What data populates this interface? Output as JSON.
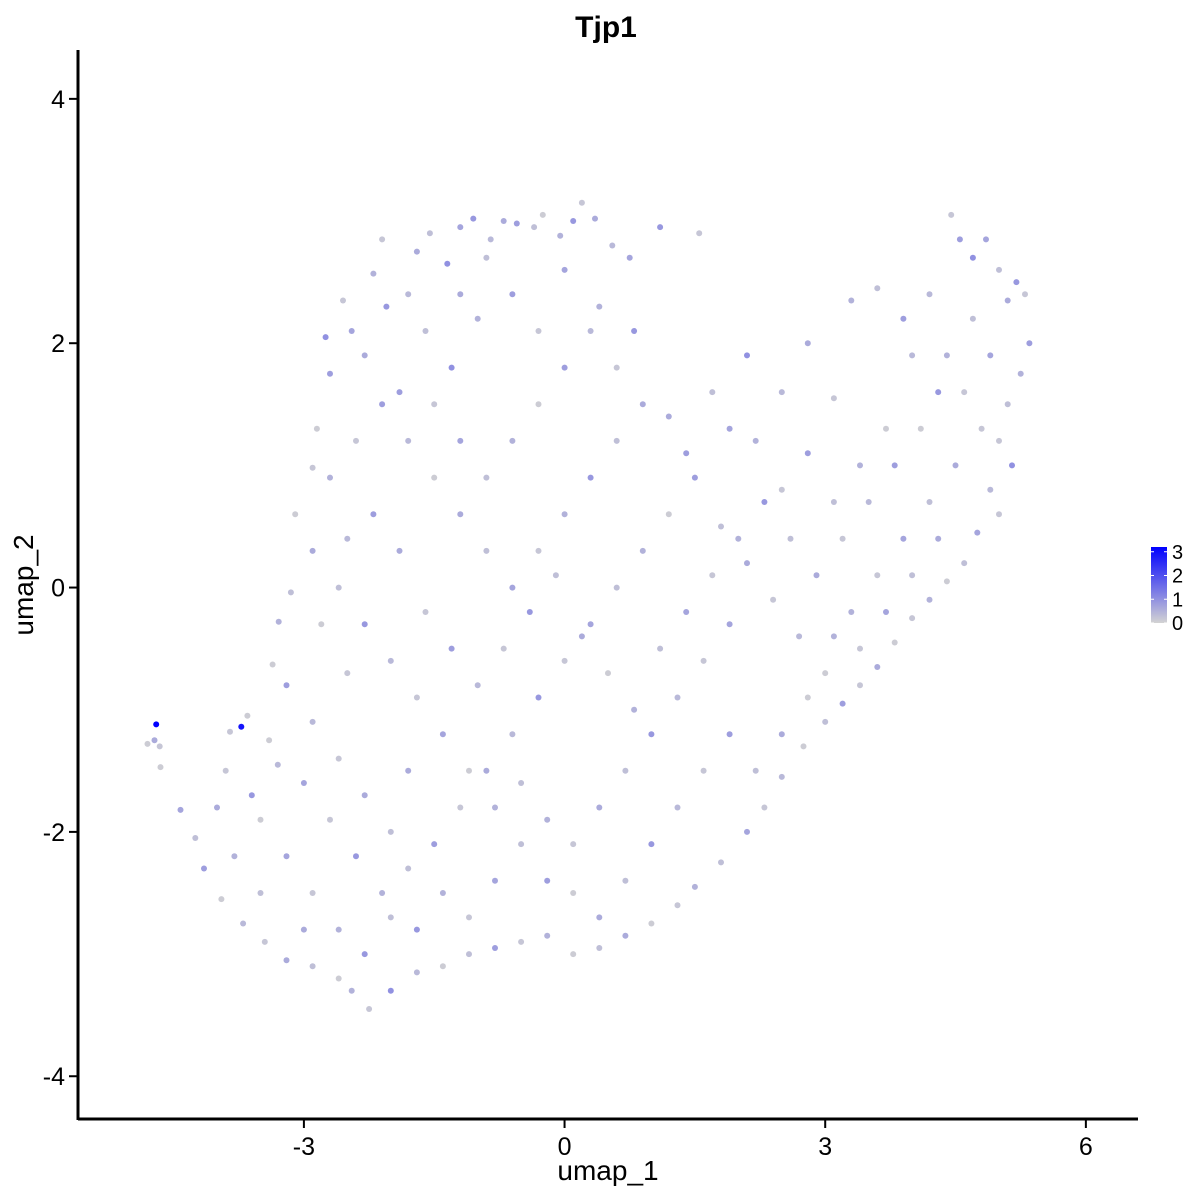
{
  "chart_data": {
    "type": "scatter",
    "title": "Tjp1",
    "xlabel": "umap_1",
    "ylabel": "umap_2",
    "xlim": [
      -5.6,
      6.6
    ],
    "ylim": [
      -4.35,
      4.4
    ],
    "x_ticks": [
      -3,
      0,
      3,
      6
    ],
    "x_tick_labels": [
      "-3",
      "0",
      "3",
      "6"
    ],
    "y_ticks": [
      -4,
      -2,
      0,
      2,
      4
    ],
    "y_tick_labels": [
      "-4",
      "-2",
      "0",
      "2",
      "4"
    ],
    "grid": false,
    "color_scale": {
      "low_color": "#d3d3d3",
      "high_color": "#0000ff",
      "min": 0,
      "max": 3.2,
      "ticks": [
        0,
        1,
        2,
        3
      ],
      "tick_labels": [
        "0",
        "1",
        "2",
        "3"
      ]
    },
    "legend_position": "right",
    "points": [
      [
        -4.7,
        -1.12,
        3.2
      ],
      [
        -4.72,
        -1.25,
        0.6
      ],
      [
        -4.8,
        -1.28,
        0.1
      ],
      [
        -4.66,
        -1.3,
        0.2
      ],
      [
        -4.65,
        -1.47,
        0.1
      ],
      [
        -3.72,
        -1.14,
        2.9
      ],
      [
        -4.42,
        -1.82,
        0.7
      ],
      [
        -3.85,
        -1.18,
        0.2
      ],
      [
        -3.65,
        -1.05,
        0.1
      ],
      [
        -3.4,
        -1.25,
        0.1
      ],
      [
        -3.29,
        -0.28,
        0.5
      ],
      [
        -3.36,
        -0.63,
        0.1
      ],
      [
        -3.15,
        -0.04,
        0.3
      ],
      [
        -2.9,
        0.98,
        0.2
      ],
      [
        -2.85,
        1.3,
        0.1
      ],
      [
        -2.75,
        2.05,
        1.0
      ],
      [
        -2.7,
        1.75,
        0.8
      ],
      [
        -2.55,
        2.35,
        0.2
      ],
      [
        -2.45,
        2.1,
        0.7
      ],
      [
        -2.2,
        2.57,
        0.5
      ],
      [
        -2.1,
        2.85,
        0.2
      ],
      [
        -2.05,
        2.3,
        0.9
      ],
      [
        -1.8,
        2.4,
        0.4
      ],
      [
        -1.7,
        2.75,
        0.6
      ],
      [
        -1.55,
        2.9,
        0.3
      ],
      [
        -1.35,
        2.65,
        1.0
      ],
      [
        -1.2,
        2.95,
        0.7
      ],
      [
        -1.05,
        3.02,
        0.9
      ],
      [
        -0.85,
        2.85,
        0.4
      ],
      [
        -0.7,
        3.0,
        0.6
      ],
      [
        -0.55,
        2.98,
        0.8
      ],
      [
        -0.35,
        2.95,
        0.3
      ],
      [
        -0.25,
        3.05,
        0.1
      ],
      [
        -0.05,
        2.88,
        0.5
      ],
      [
        0.1,
        3.0,
        0.9
      ],
      [
        0.2,
        3.15,
        0.2
      ],
      [
        0.35,
        3.02,
        0.6
      ],
      [
        0.55,
        2.8,
        0.4
      ],
      [
        0.75,
        2.7,
        0.7
      ],
      [
        1.1,
        2.95,
        0.9
      ],
      [
        1.55,
        2.9,
        0.2
      ],
      [
        -2.3,
        1.9,
        0.6
      ],
      [
        -1.9,
        1.6,
        0.8
      ],
      [
        -1.6,
        2.1,
        0.3
      ],
      [
        -1.3,
        1.8,
        1.0
      ],
      [
        -1.0,
        2.2,
        0.5
      ],
      [
        -0.6,
        2.4,
        0.8
      ],
      [
        -0.3,
        2.1,
        0.2
      ],
      [
        0.0,
        2.6,
        0.7
      ],
      [
        0.4,
        2.3,
        0.5
      ],
      [
        0.8,
        2.1,
        0.9
      ],
      [
        1.2,
        1.4,
        0.6
      ],
      [
        1.4,
        1.1,
        0.8
      ],
      [
        1.7,
        1.6,
        0.3
      ],
      [
        1.9,
        1.3,
        0.7
      ],
      [
        2.1,
        1.9,
        1.0
      ],
      [
        2.5,
        1.6,
        0.4
      ],
      [
        2.8,
        2.0,
        0.6
      ],
      [
        3.1,
        1.55,
        0.2
      ],
      [
        3.3,
        2.35,
        0.5
      ],
      [
        3.6,
        2.45,
        0.3
      ],
      [
        3.9,
        2.2,
        0.8
      ],
      [
        4.2,
        2.4,
        0.4
      ],
      [
        4.45,
        3.05,
        0.2
      ],
      [
        4.55,
        2.85,
        0.8
      ],
      [
        4.7,
        2.7,
        1.0
      ],
      [
        4.85,
        2.85,
        0.7
      ],
      [
        5.0,
        2.6,
        0.3
      ],
      [
        5.1,
        2.35,
        0.6
      ],
      [
        5.2,
        2.5,
        0.9
      ],
      [
        5.3,
        2.4,
        0.2
      ],
      [
        5.35,
        2.0,
        0.8
      ],
      [
        5.25,
        1.75,
        0.5
      ],
      [
        5.1,
        1.5,
        0.3
      ],
      [
        5.0,
        1.2,
        0.2
      ],
      [
        5.15,
        1.0,
        1.0
      ],
      [
        4.9,
        0.8,
        0.4
      ],
      [
        5.0,
        0.6,
        0.2
      ],
      [
        4.75,
        0.45,
        0.7
      ],
      [
        4.6,
        0.2,
        0.3
      ],
      [
        4.4,
        0.05,
        0.1
      ],
      [
        4.2,
        -0.1,
        0.5
      ],
      [
        4.0,
        -0.25,
        0.2
      ],
      [
        3.8,
        -0.45,
        0.1
      ],
      [
        3.6,
        -0.65,
        0.6
      ],
      [
        3.4,
        -0.8,
        0.2
      ],
      [
        3.2,
        -0.95,
        0.8
      ],
      [
        3.0,
        -1.1,
        0.3
      ],
      [
        2.75,
        -1.3,
        0.1
      ],
      [
        2.5,
        -1.55,
        0.4
      ],
      [
        2.3,
        -1.8,
        0.2
      ],
      [
        2.1,
        -2.0,
        0.7
      ],
      [
        1.8,
        -2.25,
        0.3
      ],
      [
        1.5,
        -2.45,
        0.5
      ],
      [
        1.3,
        -2.6,
        0.2
      ],
      [
        1.0,
        -2.75,
        0.1
      ],
      [
        0.7,
        -2.85,
        0.6
      ],
      [
        0.4,
        -2.95,
        0.3
      ],
      [
        0.1,
        -3.0,
        0.1
      ],
      [
        -0.2,
        -2.85,
        0.5
      ],
      [
        -0.5,
        -2.9,
        0.2
      ],
      [
        -0.8,
        -2.95,
        0.8
      ],
      [
        -1.1,
        -3.0,
        0.3
      ],
      [
        -1.4,
        -3.1,
        0.1
      ],
      [
        -1.7,
        -3.15,
        0.4
      ],
      [
        -2.0,
        -3.3,
        1.0
      ],
      [
        -2.25,
        -3.45,
        0.2
      ],
      [
        -2.45,
        -3.3,
        0.5
      ],
      [
        -2.6,
        -3.2,
        0.1
      ],
      [
        -2.9,
        -3.1,
        0.3
      ],
      [
        -3.2,
        -3.05,
        0.6
      ],
      [
        -3.45,
        -2.9,
        0.2
      ],
      [
        -3.7,
        -2.75,
        0.4
      ],
      [
        -3.95,
        -2.55,
        0.1
      ],
      [
        -4.15,
        -2.3,
        0.8
      ],
      [
        -4.25,
        -2.05,
        0.3
      ],
      [
        -4.0,
        -1.8,
        0.6
      ],
      [
        -3.9,
        -1.5,
        0.2
      ],
      [
        -3.6,
        -1.7,
        0.9
      ],
      [
        -3.3,
        -1.45,
        0.4
      ],
      [
        -3.0,
        -1.6,
        0.7
      ],
      [
        -2.7,
        -1.9,
        0.2
      ],
      [
        -2.4,
        -2.2,
        0.9
      ],
      [
        -2.1,
        -2.5,
        0.5
      ],
      [
        -1.8,
        -2.3,
        0.3
      ],
      [
        -1.5,
        -2.1,
        0.8
      ],
      [
        -1.2,
        -1.8,
        0.2
      ],
      [
        -0.9,
        -1.5,
        0.6
      ],
      [
        -0.6,
        -1.2,
        0.4
      ],
      [
        -0.3,
        -0.9,
        0.9
      ],
      [
        0.0,
        -0.6,
        0.2
      ],
      [
        0.3,
        -0.3,
        0.7
      ],
      [
        0.6,
        0.0,
        0.3
      ],
      [
        0.9,
        0.3,
        0.5
      ],
      [
        1.2,
        0.6,
        0.1
      ],
      [
        1.5,
        0.9,
        0.8
      ],
      [
        1.8,
        0.5,
        0.3
      ],
      [
        2.1,
        0.2,
        0.6
      ],
      [
        2.4,
        -0.1,
        0.2
      ],
      [
        2.7,
        -0.4,
        0.4
      ],
      [
        3.0,
        -0.7,
        0.1
      ],
      [
        3.3,
        -0.2,
        0.5
      ],
      [
        3.6,
        0.1,
        0.2
      ],
      [
        3.9,
        0.4,
        0.7
      ],
      [
        4.2,
        0.7,
        0.3
      ],
      [
        4.5,
        1.0,
        0.6
      ],
      [
        4.8,
        1.3,
        0.2
      ],
      [
        4.3,
        1.6,
        0.9
      ],
      [
        4.0,
        1.9,
        0.4
      ],
      [
        3.7,
        1.3,
        0.1
      ],
      [
        3.4,
        1.0,
        0.5
      ],
      [
        3.1,
        0.7,
        0.3
      ],
      [
        2.8,
        1.1,
        0.8
      ],
      [
        2.5,
        0.8,
        0.2
      ],
      [
        2.2,
        1.2,
        0.5
      ],
      [
        1.9,
        -0.3,
        0.7
      ],
      [
        1.6,
        -0.6,
        0.2
      ],
      [
        1.3,
        -0.9,
        0.4
      ],
      [
        1.0,
        -1.2,
        0.9
      ],
      [
        0.7,
        -1.5,
        0.3
      ],
      [
        0.4,
        -1.8,
        0.6
      ],
      [
        0.1,
        -2.1,
        0.2
      ],
      [
        -0.2,
        -2.4,
        0.8
      ],
      [
        -0.5,
        -2.1,
        0.3
      ],
      [
        -0.8,
        -1.8,
        0.5
      ],
      [
        -1.1,
        -1.5,
        0.1
      ],
      [
        -1.4,
        -1.2,
        0.7
      ],
      [
        -1.7,
        -0.9,
        0.2
      ],
      [
        -2.0,
        -0.6,
        0.4
      ],
      [
        -2.3,
        -0.3,
        0.9
      ],
      [
        -2.6,
        0.0,
        0.3
      ],
      [
        -2.9,
        0.3,
        0.6
      ],
      [
        -3.1,
        0.6,
        0.1
      ],
      [
        -2.7,
        0.9,
        0.5
      ],
      [
        -2.4,
        1.2,
        0.2
      ],
      [
        -2.1,
        1.5,
        0.8
      ],
      [
        -1.8,
        1.2,
        0.4
      ],
      [
        -1.5,
        0.9,
        0.1
      ],
      [
        -1.2,
        0.6,
        0.6
      ],
      [
        -0.9,
        0.3,
        0.3
      ],
      [
        -0.6,
        0.0,
        0.7
      ],
      [
        -0.3,
        0.3,
        0.2
      ],
      [
        0.0,
        0.6,
        0.5
      ],
      [
        0.3,
        0.9,
        0.9
      ],
      [
        0.6,
        1.2,
        0.3
      ],
      [
        0.9,
        1.5,
        0.6
      ],
      [
        0.6,
        1.8,
        0.2
      ],
      [
        0.3,
        2.1,
        0.4
      ],
      [
        0.0,
        1.8,
        0.8
      ],
      [
        -0.3,
        1.5,
        0.1
      ],
      [
        -0.6,
        1.2,
        0.5
      ],
      [
        -0.9,
        0.9,
        0.3
      ],
      [
        -1.2,
        1.2,
        0.7
      ],
      [
        -1.5,
        1.5,
        0.2
      ],
      [
        -1.2,
        2.4,
        0.6
      ],
      [
        -0.9,
        2.7,
        0.3
      ],
      [
        -1.9,
        0.3,
        0.6
      ],
      [
        -1.6,
        -0.2,
        0.2
      ],
      [
        -1.3,
        -0.5,
        0.8
      ],
      [
        -1.0,
        -0.8,
        0.4
      ],
      [
        -0.7,
        -0.5,
        0.2
      ],
      [
        -0.4,
        -0.2,
        0.9
      ],
      [
        -0.1,
        0.1,
        0.3
      ],
      [
        0.2,
        -0.4,
        0.6
      ],
      [
        0.5,
        -0.7,
        0.1
      ],
      [
        0.8,
        -1.0,
        0.5
      ],
      [
        1.1,
        -0.5,
        0.3
      ],
      [
        1.4,
        -0.2,
        0.7
      ],
      [
        1.7,
        0.1,
        0.2
      ],
      [
        2.0,
        0.4,
        0.5
      ],
      [
        2.3,
        0.7,
        0.9
      ],
      [
        2.6,
        0.4,
        0.3
      ],
      [
        2.9,
        0.1,
        0.6
      ],
      [
        3.2,
        0.4,
        0.2
      ],
      [
        3.5,
        0.7,
        0.4
      ],
      [
        3.8,
        1.0,
        0.8
      ],
      [
        4.1,
        1.3,
        0.1
      ],
      [
        4.4,
        1.9,
        0.5
      ],
      [
        4.7,
        2.2,
        0.3
      ],
      [
        4.9,
        1.9,
        0.7
      ],
      [
        4.6,
        1.6,
        0.2
      ],
      [
        4.3,
        0.4,
        0.6
      ],
      [
        4.0,
        0.1,
        0.3
      ],
      [
        3.7,
        -0.2,
        0.7
      ],
      [
        3.4,
        -0.5,
        0.2
      ],
      [
        3.1,
        -0.4,
        0.5
      ],
      [
        2.8,
        -0.9,
        0.1
      ],
      [
        2.5,
        -1.2,
        0.6
      ],
      [
        2.2,
        -1.5,
        0.3
      ],
      [
        1.9,
        -1.2,
        0.8
      ],
      [
        1.6,
        -1.5,
        0.2
      ],
      [
        1.3,
        -1.8,
        0.4
      ],
      [
        1.0,
        -2.1,
        0.9
      ],
      [
        0.7,
        -2.4,
        0.3
      ],
      [
        0.4,
        -2.7,
        0.6
      ],
      [
        0.1,
        -2.5,
        0.1
      ],
      [
        -0.2,
        -1.9,
        0.5
      ],
      [
        -0.5,
        -1.6,
        0.3
      ],
      [
        -0.8,
        -2.4,
        0.7
      ],
      [
        -1.1,
        -2.7,
        0.2
      ],
      [
        -1.4,
        -2.5,
        0.5
      ],
      [
        -1.7,
        -2.8,
        0.9
      ],
      [
        -2.0,
        -2.0,
        0.3
      ],
      [
        -2.3,
        -1.7,
        0.6
      ],
      [
        -2.6,
        -1.4,
        0.2
      ],
      [
        -2.9,
        -1.1,
        0.4
      ],
      [
        -3.2,
        -0.8,
        0.8
      ],
      [
        -3.5,
        -1.9,
        0.1
      ],
      [
        -3.8,
        -2.2,
        0.5
      ],
      [
        -3.5,
        -2.5,
        0.3
      ],
      [
        -3.2,
        -2.2,
        0.7
      ],
      [
        -2.9,
        -2.5,
        0.2
      ],
      [
        -2.6,
        -2.8,
        0.5
      ],
      [
        -2.3,
        -3.0,
        0.9
      ],
      [
        -2.0,
        -2.7,
        0.3
      ],
      [
        -1.8,
        -1.5,
        0.6
      ],
      [
        -2.5,
        -0.7,
        0.2
      ],
      [
        -2.2,
        0.6,
        0.8
      ],
      [
        -2.5,
        0.4,
        0.4
      ],
      [
        -2.8,
        -0.3,
        0.1
      ],
      [
        -3.0,
        -2.8,
        0.6
      ]
    ]
  }
}
